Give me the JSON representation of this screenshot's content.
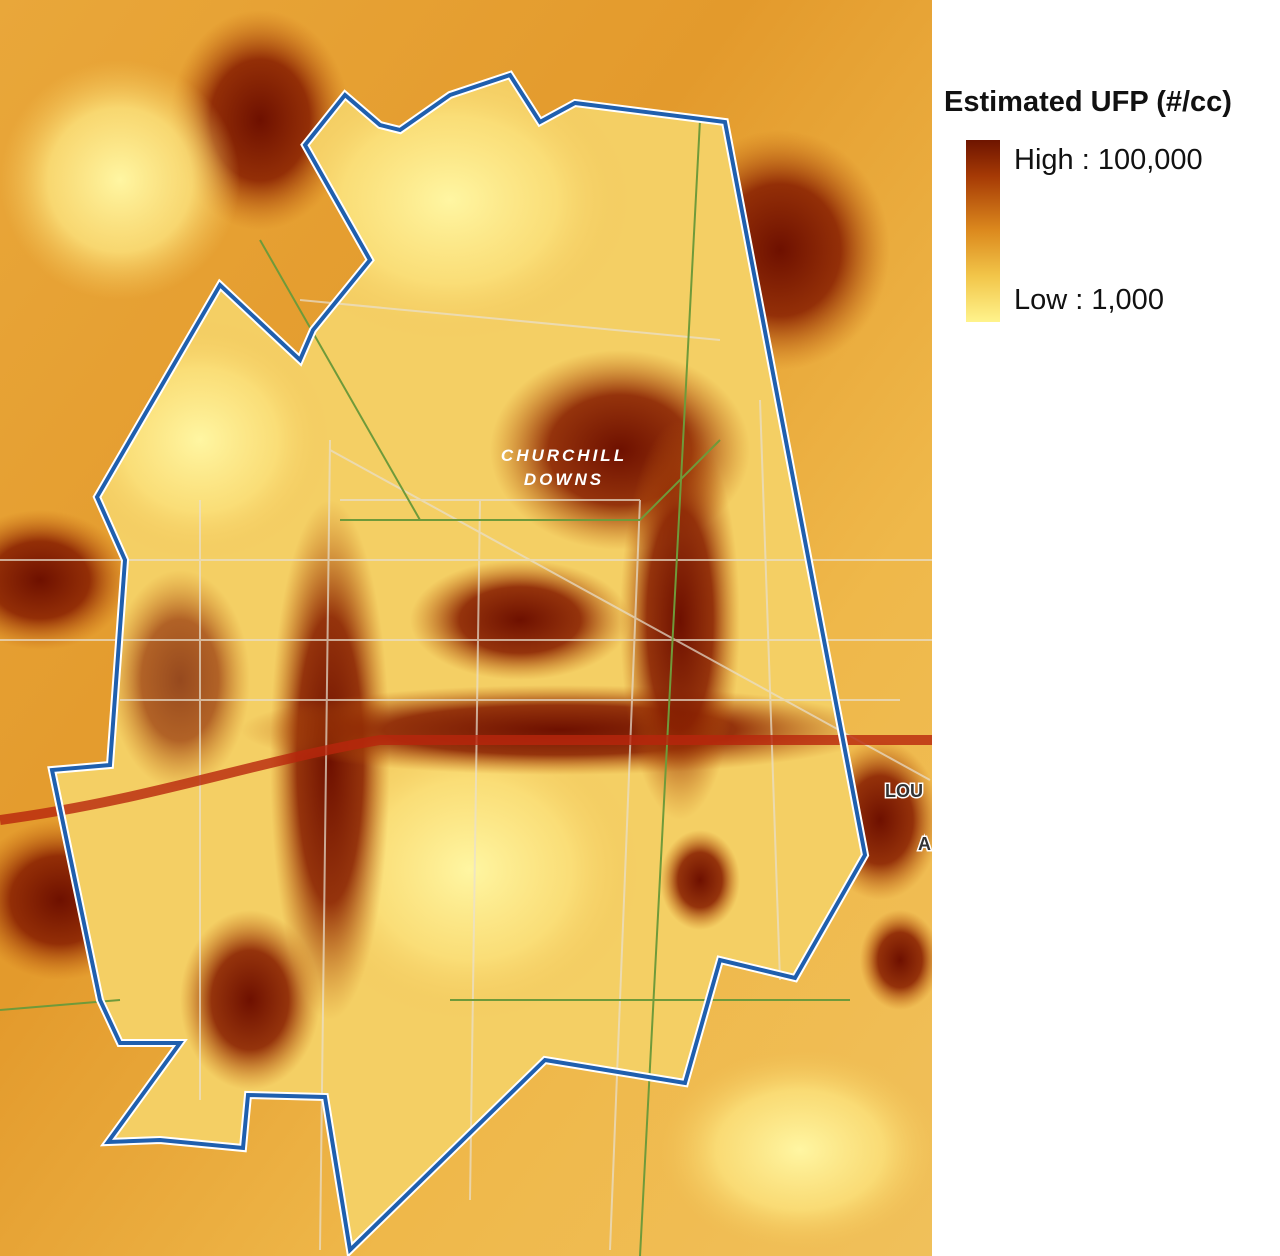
{
  "legend": {
    "title": "Estimated UFP (#/cc)",
    "high": "High : 100,000",
    "low": "Low : 1,000"
  },
  "map_labels": {
    "churchill": "CHURCHILL",
    "downs": "DOWNS",
    "lou": "LOU",
    "a": "A"
  }
}
